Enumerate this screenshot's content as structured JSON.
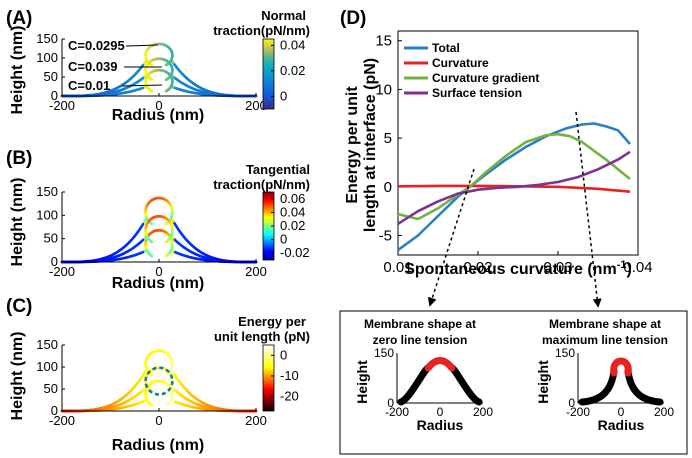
{
  "chart_data": [
    {
      "panel": "(A)",
      "type": "line",
      "xlabel": "Radius (nm)",
      "ylabel": "Height (nm)",
      "xlim": [
        -200,
        200
      ],
      "ylim": [
        0,
        150
      ],
      "xticks": [
        "-200",
        "0",
        "200"
      ],
      "yticks": [
        "0",
        "50",
        "100",
        "150"
      ],
      "colorbar": {
        "title_lines": [
          "Normal",
          "traction(pN/nm)"
        ],
        "ticks": [
          "0.04",
          "0.02",
          "0"
        ],
        "range": [
          -0.01,
          0.045
        ]
      },
      "annotations": [
        "C=0.0295",
        "C=0.039",
        "C=0.01"
      ],
      "series": [
        {
          "annotation": "C=0.01",
          "C": 0.01,
          "cap_top": 68
        },
        {
          "annotation": "C=0.0295",
          "C": 0.0295,
          "cap_top": 137
        },
        {
          "annotation": "C=0.039",
          "C": 0.039,
          "cap_top": 98
        }
      ]
    },
    {
      "panel": "(B)",
      "type": "line",
      "xlabel": "Radius (nm)",
      "ylabel": "Height (nm)",
      "xlim": [
        -200,
        200
      ],
      "ylim": [
        0,
        150
      ],
      "xticks": [
        "-200",
        "0",
        "200"
      ],
      "yticks": [
        "0",
        "50",
        "100",
        "150"
      ],
      "colorbar": {
        "title_lines": [
          "Tangential",
          "traction(pN/nm)"
        ],
        "ticks": [
          "0.06",
          "0.04",
          "0.02",
          "0",
          "-0.02"
        ],
        "range": [
          -0.03,
          0.07
        ]
      }
    },
    {
      "panel": "(C)",
      "type": "line",
      "xlabel": "Radius (nm)",
      "ylabel": "Height (nm)",
      "xlim": [
        -200,
        200
      ],
      "ylim": [
        0,
        150
      ],
      "xticks": [
        "-200",
        "0",
        "200"
      ],
      "yticks": [
        "0",
        "50",
        "100",
        "150"
      ],
      "colorbar": {
        "title_lines": [
          "Energy per",
          "unit length (pN)"
        ],
        "ticks": [
          "0",
          "-10",
          "-20"
        ],
        "range": [
          -27,
          5
        ]
      }
    },
    {
      "panel": "(D)",
      "type": "line",
      "xlabel": "Spontaneous curvature (nm",
      "xlabel_sup": "-1",
      "xlabel_close": ")",
      "ylabel_lines": [
        "Energy per unit",
        "length at interface (pN)"
      ],
      "xlim": [
        0.01,
        0.04
      ],
      "ylim": [
        -7,
        16
      ],
      "xticks": [
        "0.01",
        "0.02",
        "0.03",
        "0.04"
      ],
      "yticks": [
        "-5",
        "0",
        "5",
        "10",
        "15"
      ],
      "legend_position": "top-left",
      "series": [
        {
          "name": "Total",
          "color": "#2a7fc9",
          "x": [
            0.01,
            0.0125,
            0.015,
            0.0175,
            0.019,
            0.021,
            0.0235,
            0.026,
            0.0285,
            0.031,
            0.033,
            0.0345,
            0.036,
            0.0375,
            0.039
          ],
          "y": [
            -6.5,
            -5.0,
            -3.0,
            -1.0,
            0.0,
            1.3,
            2.8,
            4.1,
            5.2,
            6.0,
            6.4,
            6.5,
            6.2,
            5.8,
            4.4
          ]
        },
        {
          "name": "Curvature",
          "color": "#e8231f",
          "x": [
            0.01,
            0.015,
            0.02,
            0.025,
            0.03,
            0.035,
            0.039
          ],
          "y": [
            0.05,
            0.1,
            0.1,
            0.05,
            0.0,
            -0.2,
            -0.5
          ]
        },
        {
          "name": "Curvature gradient",
          "color": "#74b240",
          "x": [
            0.01,
            0.0125,
            0.015,
            0.0175,
            0.019,
            0.021,
            0.0235,
            0.026,
            0.0285,
            0.03,
            0.0315,
            0.033,
            0.0345,
            0.036,
            0.0375,
            0.039
          ],
          "y": [
            -2.8,
            -3.3,
            -2.2,
            -0.8,
            0.0,
            1.5,
            3.2,
            4.6,
            5.3,
            5.4,
            5.2,
            4.6,
            3.7,
            2.8,
            1.8,
            0.8
          ]
        },
        {
          "name": "Surface tension",
          "color": "#7b3294",
          "x": [
            0.01,
            0.0125,
            0.015,
            0.0175,
            0.02,
            0.0225,
            0.025,
            0.0275,
            0.03,
            0.0325,
            0.035,
            0.0375,
            0.039
          ],
          "y": [
            -3.8,
            -2.5,
            -1.5,
            -0.7,
            -0.3,
            -0.1,
            0.0,
            0.2,
            0.5,
            1.0,
            1.8,
            2.8,
            3.6
          ]
        }
      ],
      "inset": {
        "left_title_lines": [
          "Membrane shape at",
          "zero line tension"
        ],
        "right_title_lines": [
          "Membrane shape at",
          "maximum line tension"
        ],
        "xlabel": "Radius",
        "ylabel": "Height",
        "xticks": [
          "-200",
          "0",
          "200"
        ],
        "yticks": [
          "0",
          "150"
        ]
      }
    }
  ]
}
